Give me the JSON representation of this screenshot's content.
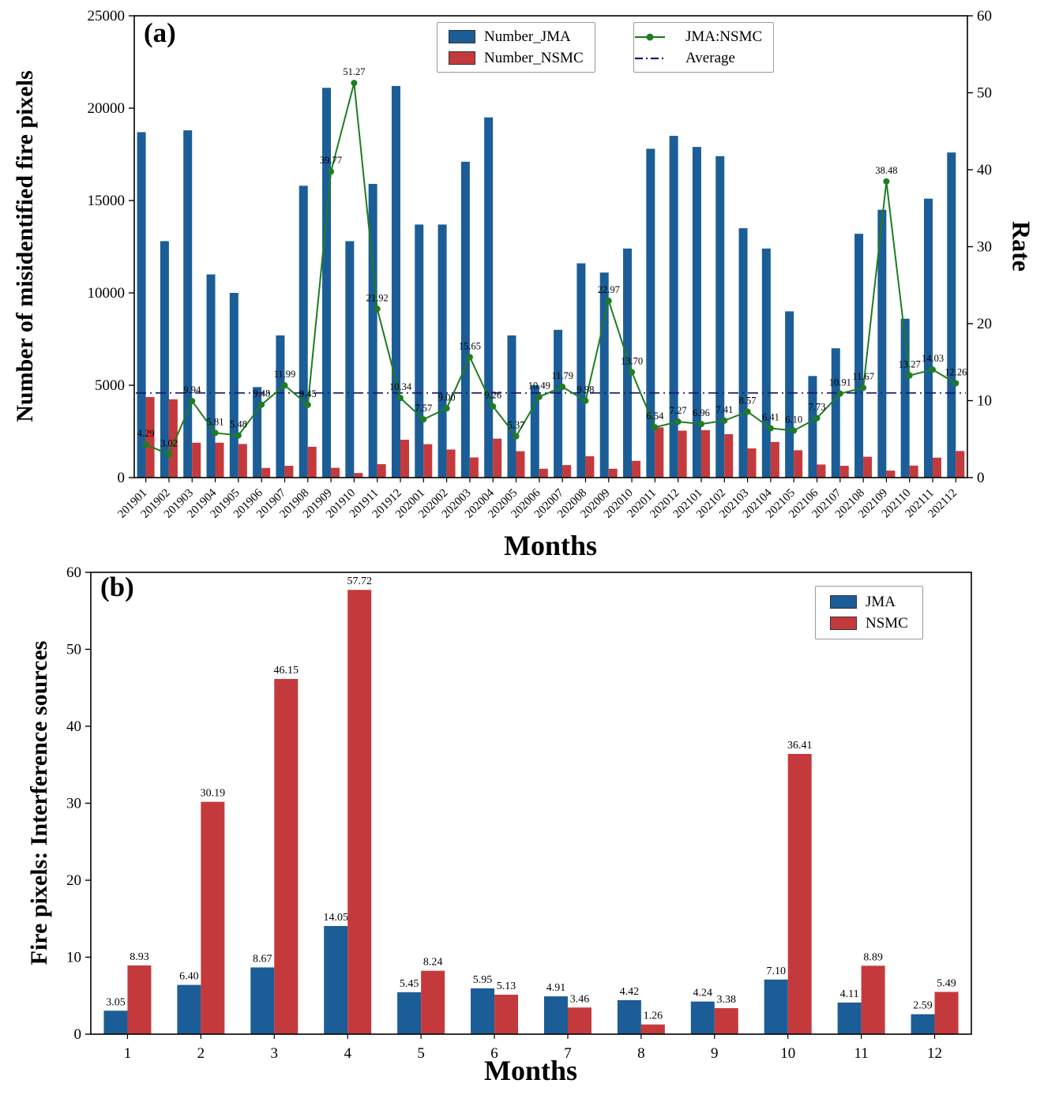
{
  "figure": {
    "panel_a_label": "(a)",
    "panel_b_label": "(b)"
  },
  "chart_data": [
    {
      "type": "bar",
      "subtype": "grouped-bars-with-ratio-line",
      "panel": "(a)",
      "xlabel": "Months",
      "ylabel_left": "Number of misidentified fire pixels",
      "ylabel_right": "Rate",
      "ylim_left": [
        0,
        25000
      ],
      "ylim_right": [
        0,
        60
      ],
      "yticks_left": [
        0,
        5000,
        10000,
        15000,
        20000,
        25000
      ],
      "yticks_right": [
        0,
        10,
        20,
        30,
        40,
        50,
        60
      ],
      "legend_position": "top-center",
      "grid": false,
      "categories": [
        "201901",
        "201902",
        "201903",
        "201904",
        "201905",
        "201906",
        "201907",
        "201908",
        "201909",
        "201910",
        "201911",
        "201912",
        "202001",
        "202002",
        "202003",
        "202004",
        "202005",
        "202006",
        "202007",
        "202008",
        "202009",
        "202010",
        "202011",
        "202012",
        "202101",
        "202102",
        "202103",
        "202104",
        "202105",
        "202106",
        "202107",
        "202108",
        "202109",
        "202110",
        "202111",
        "202112"
      ],
      "series": [
        {
          "name": "Number_JMA",
          "kind": "bar",
          "axis": "left",
          "color": "#1b5d97",
          "values": [
            18700,
            12800,
            18800,
            11000,
            10000,
            4900,
            7700,
            15800,
            21100,
            12800,
            15900,
            21200,
            13700,
            13700,
            17100,
            19500,
            7700,
            5000,
            8000,
            11600,
            11100,
            12400,
            17800,
            18500,
            17900,
            17400,
            13500,
            12400,
            9000,
            5500,
            7000,
            13200,
            14500,
            8600,
            15100,
            17600
          ]
        },
        {
          "name": "Number_NSMC",
          "kind": "bar",
          "axis": "left",
          "color": "#c43a3c",
          "values": [
            4360,
            4240,
            1890,
            1890,
            1820,
            520,
            640,
            1670,
            530,
            250,
            730,
            2050,
            1810,
            1520,
            1090,
            2110,
            1430,
            480,
            680,
            1160,
            480,
            910,
            2720,
            2540,
            2570,
            2350,
            1580,
            1930,
            1480,
            710,
            640,
            1130,
            380,
            650,
            1080,
            1440
          ]
        },
        {
          "name": "JMA:NSMC",
          "kind": "line",
          "axis": "right",
          "color": "#1e7d1e",
          "values": [
            4.29,
            3.02,
            9.94,
            5.81,
            5.48,
            9.48,
            11.99,
            9.45,
            39.77,
            51.27,
            21.92,
            10.34,
            7.57,
            9.0,
            15.65,
            9.26,
            5.37,
            10.49,
            11.79,
            9.98,
            22.97,
            13.7,
            6.54,
            7.27,
            6.96,
            7.41,
            8.57,
            6.41,
            6.1,
            7.73,
            10.91,
            11.67,
            38.48,
            13.27,
            14.03,
            12.26
          ],
          "labels": [
            "4.29",
            "3.02",
            "9.94",
            "5.81",
            "5.48",
            "9.48",
            "11.99",
            "9.45",
            "39.77",
            "51.27",
            "21.92",
            "10.34",
            "7.57",
            "9.00",
            "15.65",
            "9.26",
            "5.37",
            "10.49",
            "11.79",
            "9.98",
            "22.97",
            "13.70",
            "6.54",
            "7.27",
            "6.96",
            "7.41",
            "8.57",
            "6.41",
            "6.10",
            "7.73",
            "10.91",
            "11.67",
            "38.48",
            "13.27",
            "14.03",
            "12.26"
          ]
        },
        {
          "name": "Average",
          "kind": "hline",
          "axis": "right",
          "color": "#191970",
          "value": 11.0
        }
      ]
    },
    {
      "type": "bar",
      "panel": "(b)",
      "xlabel": "Months",
      "ylabel": "Fire pixels: Interference sources",
      "ylim": [
        0,
        60
      ],
      "yticks": [
        0,
        10,
        20,
        30,
        40,
        50,
        60
      ],
      "legend_position": "top-right",
      "grid": false,
      "categories": [
        "1",
        "2",
        "3",
        "4",
        "5",
        "6",
        "7",
        "8",
        "9",
        "10",
        "11",
        "12"
      ],
      "series": [
        {
          "name": "JMA",
          "color": "#1b5d97",
          "values": [
            3.05,
            6.4,
            8.67,
            14.05,
            5.45,
            5.95,
            4.91,
            4.42,
            4.24,
            7.1,
            4.11,
            2.59
          ],
          "labels": [
            "3.05",
            "6.40",
            "8.67",
            "14.05",
            "5.45",
            "5.95",
            "4.91",
            "4.42",
            "4.24",
            "7.10",
            "4.11",
            "2.59"
          ]
        },
        {
          "name": "NSMC",
          "color": "#c43a3c",
          "values": [
            8.93,
            30.19,
            46.15,
            57.72,
            8.24,
            5.13,
            3.46,
            1.26,
            3.38,
            36.41,
            8.89,
            5.49
          ],
          "labels": [
            "8.93",
            "30.19",
            "46.15",
            "57.72",
            "8.24",
            "5.13",
            "3.46",
            "1.26",
            "3.38",
            "36.41",
            "8.89",
            "5.49"
          ]
        }
      ]
    }
  ]
}
